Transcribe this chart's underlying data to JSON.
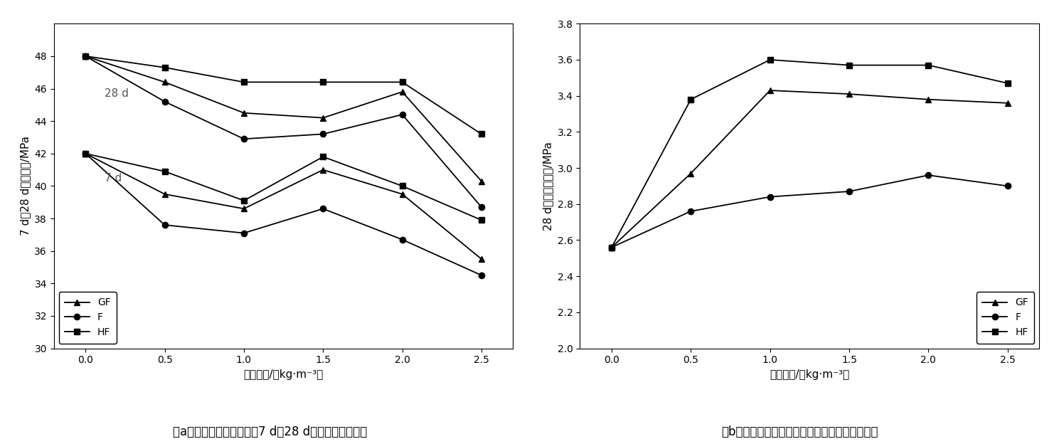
{
  "x": [
    0.0,
    0.5,
    1.0,
    1.5,
    2.0,
    2.5
  ],
  "xlabel": "纤维掖量/（kg·m⁻³）",
  "plot_a": {
    "title": "（a）自密实轻骨料混凝土7 d、28 d抗压强度变化趋势",
    "ylabel_full": "7 d、28 d抗压强度/MPa",
    "ylim": [
      30,
      50
    ],
    "yticks": [
      30,
      32,
      34,
      36,
      38,
      40,
      42,
      44,
      46,
      48
    ],
    "annotation_28d": "28 d",
    "annotation_7d": "7 d",
    "GF_28d": [
      48.0,
      46.4,
      44.5,
      44.2,
      45.8,
      40.3
    ],
    "F_28d": [
      48.0,
      45.2,
      42.9,
      43.2,
      44.4,
      38.7
    ],
    "HF_28d": [
      48.0,
      47.3,
      46.4,
      46.4,
      46.4,
      43.2
    ],
    "GF_7d": [
      42.0,
      39.5,
      38.6,
      41.0,
      39.5,
      35.5
    ],
    "F_7d": [
      42.0,
      37.6,
      37.1,
      38.6,
      36.7,
      34.5
    ],
    "HF_7d": [
      42.0,
      40.9,
      39.1,
      41.8,
      40.0,
      37.9
    ]
  },
  "plot_b": {
    "title": "（b）自密实轻骨料混凝土劌裂抗拉强度变化趋势",
    "ylabel": "28 d劌裂抗拉强度/MPa",
    "ylim": [
      2.0,
      3.8
    ],
    "yticks": [
      2.0,
      2.2,
      2.4,
      2.6,
      2.8,
      3.0,
      3.2,
      3.4,
      3.6,
      3.8
    ],
    "GF": [
      2.56,
      2.97,
      3.43,
      3.41,
      3.38,
      3.36
    ],
    "F": [
      2.56,
      2.76,
      2.84,
      2.87,
      2.96,
      2.9
    ],
    "HF": [
      2.56,
      3.38,
      3.6,
      3.57,
      3.57,
      3.47
    ]
  },
  "line_color": "#000000",
  "marker_GF": "^",
  "marker_F": "o",
  "marker_HF": "s",
  "markersize": 6,
  "linewidth": 1.3,
  "bg_color": "#ffffff",
  "font_size_axis_label": 11,
  "font_size_tick": 10,
  "font_size_legend": 10,
  "font_size_caption": 12,
  "font_size_annotation": 11
}
